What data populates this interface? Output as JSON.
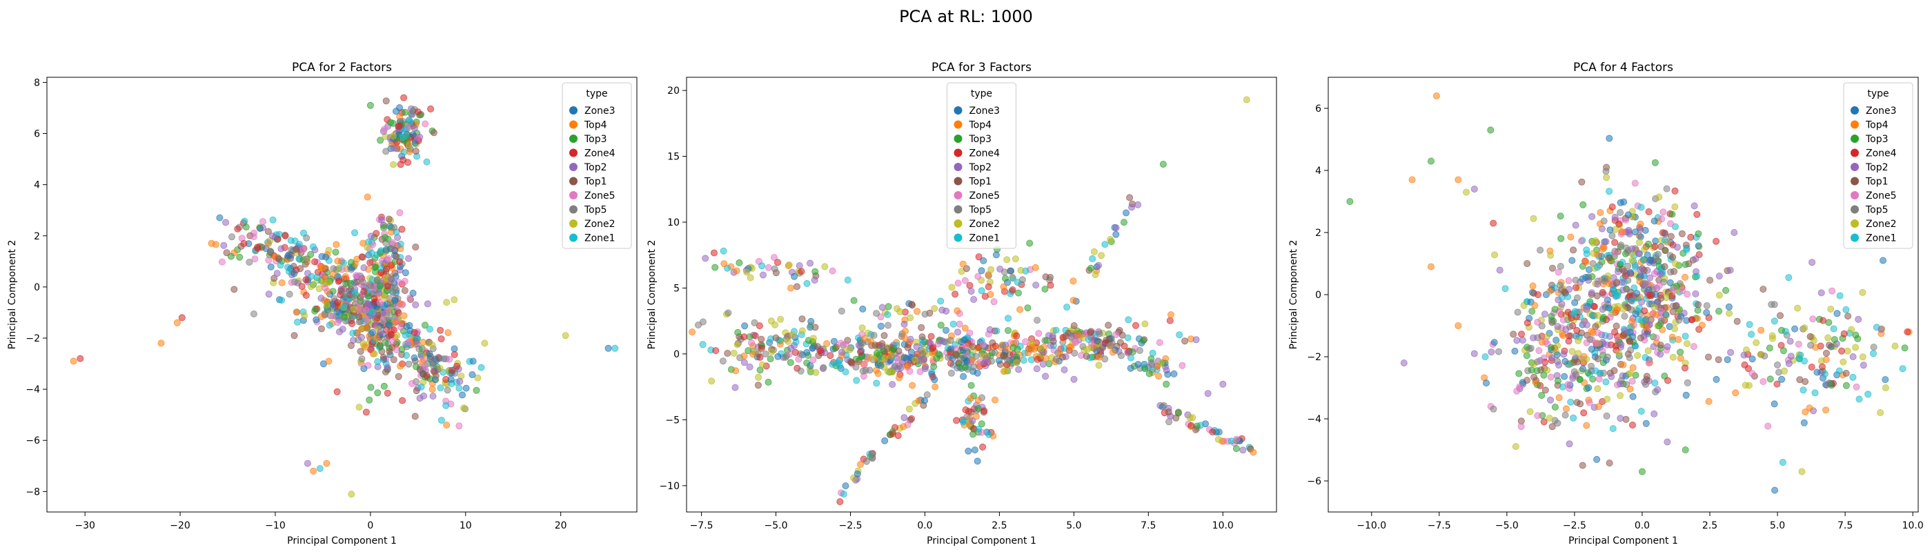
{
  "figure": {
    "title": "PCA at RL: 1000"
  },
  "legend_items": [
    {
      "label": "Zone3",
      "color": "#1f77b4"
    },
    {
      "label": "Top4",
      "color": "#ff7f0e"
    },
    {
      "label": "Top3",
      "color": "#2ca02c"
    },
    {
      "label": "Zone4",
      "color": "#d62728"
    },
    {
      "label": "Top2",
      "color": "#9467bd"
    },
    {
      "label": "Top1",
      "color": "#8c564b"
    },
    {
      "label": "Zone5",
      "color": "#e377c2"
    },
    {
      "label": "Top5",
      "color": "#7f7f7f"
    },
    {
      "label": "Zone2",
      "color": "#bcbd22"
    },
    {
      "label": "Zone1",
      "color": "#17becf"
    }
  ],
  "chart_data": [
    {
      "type": "scatter",
      "title": "PCA for 2 Factors",
      "xlabel": "Principal Component 1",
      "ylabel": "Principal Component 2",
      "xlim": [
        -34,
        28
      ],
      "ylim": [
        -8.8,
        8.2
      ],
      "xticks": [
        -30,
        -20,
        -10,
        0,
        10,
        20
      ],
      "yticks": [
        -8,
        -6,
        -4,
        -2,
        0,
        2,
        4,
        6,
        8
      ],
      "legend": {
        "title": "type",
        "position": "upper-right"
      },
      "clusters": [
        {
          "cx": 3.5,
          "cy": 6.0,
          "sx": 1.2,
          "sy": 0.5,
          "n": 110,
          "rot": 0
        },
        {
          "cx": 0.5,
          "cy": -1.0,
          "sx": 1.6,
          "sy": 1.3,
          "n": 260,
          "rot": 0
        },
        {
          "cx": -3.0,
          "cy": -0.8,
          "sx": 2.3,
          "sy": 0.3,
          "n": 90,
          "rot": 0
        },
        {
          "cx": -9.0,
          "cy": 1.2,
          "sx": 4.5,
          "sy": 0.6,
          "n": 150,
          "rot": -8
        },
        {
          "cx": -4.0,
          "cy": 0.0,
          "sx": 2.5,
          "sy": 0.9,
          "n": 90,
          "rot": 0
        },
        {
          "cx": 5.0,
          "cy": -2.5,
          "sx": 2.4,
          "sy": 0.8,
          "n": 120,
          "rot": -25
        },
        {
          "cx": 2.0,
          "cy": 1.3,
          "sx": 1.1,
          "sy": 0.9,
          "n": 70,
          "rot": 0
        },
        {
          "cx": 7.5,
          "cy": -3.3,
          "sx": 2.2,
          "sy": 0.6,
          "n": 50,
          "rot": 0
        }
      ],
      "points": [
        {
          "x": -30.5,
          "y": -2.8,
          "t": 3
        },
        {
          "x": -31.2,
          "y": -2.9,
          "t": 1
        },
        {
          "x": -22,
          "y": -2.2,
          "t": 1
        },
        {
          "x": -19.8,
          "y": -1.2,
          "t": 3
        },
        {
          "x": -20.3,
          "y": -1.4,
          "t": 1
        },
        {
          "x": 25,
          "y": -2.4,
          "t": 0
        },
        {
          "x": 25.7,
          "y": -2.4,
          "t": 9
        },
        {
          "x": 20.5,
          "y": -1.9,
          "t": 8
        },
        {
          "x": -6,
          "y": -7.2,
          "t": 1
        },
        {
          "x": -6.6,
          "y": -6.9,
          "t": 4
        },
        {
          "x": -4.6,
          "y": -6.9,
          "t": 1
        },
        {
          "x": -5.3,
          "y": -7.1,
          "t": 9
        },
        {
          "x": -2,
          "y": -8.1,
          "t": 8
        },
        {
          "x": 12,
          "y": -2.2,
          "t": 8
        },
        {
          "x": 8,
          "y": -0.6,
          "t": 8
        },
        {
          "x": 8.8,
          "y": -0.5,
          "t": 8
        },
        {
          "x": -8,
          "y": -1.9,
          "t": 5
        },
        {
          "x": -3.5,
          "y": -4.1,
          "t": 3
        },
        {
          "x": 3.5,
          "y": 7.4,
          "t": 3
        },
        {
          "x": 0,
          "y": 7.1,
          "t": 2
        }
      ]
    },
    {
      "type": "scatter",
      "title": "PCA for 3 Factors",
      "xlabel": "Principal Component 1",
      "ylabel": "Principal Component 2",
      "xlim": [
        -8.0,
        11.8
      ],
      "ylim": [
        -12.0,
        21.0
      ],
      "xticks": [
        -7.5,
        -5.0,
        -2.5,
        0.0,
        2.5,
        5.0,
        7.5,
        10.0
      ],
      "yticks": [
        -10,
        -5,
        0,
        5,
        10,
        15,
        20
      ],
      "legend": {
        "title": "type",
        "position": "upper-center"
      },
      "clusters": [
        {
          "cx": -1.5,
          "cy": 0.0,
          "sx": 2.0,
          "sy": 0.9,
          "n": 240,
          "rot": 0
        },
        {
          "cx": 2.0,
          "cy": 0.0,
          "sx": 1.8,
          "sy": 0.9,
          "n": 220,
          "rot": 0
        },
        {
          "cx": 5.5,
          "cy": 0.8,
          "sx": 1.3,
          "sy": 0.8,
          "n": 110,
          "rot": 15
        },
        {
          "cx": -5.5,
          "cy": 0.8,
          "sx": 1.1,
          "sy": 1.2,
          "n": 70,
          "rot": 0
        },
        {
          "cx": -5.2,
          "cy": 6.5,
          "sx": 1.2,
          "sy": 0.5,
          "n": 40,
          "rot": -15
        },
        {
          "cx": 2.7,
          "cy": 5.5,
          "sx": 0.8,
          "sy": 1.0,
          "n": 60,
          "rot": 0
        },
        {
          "cx": 1.6,
          "cy": -5.0,
          "sx": 0.3,
          "sy": 1.5,
          "n": 45,
          "rot": 0
        },
        {
          "cx": -0.5,
          "cy": 3.0,
          "sx": 0.9,
          "sy": 0.6,
          "n": 30,
          "rot": 0
        },
        {
          "cx": 8.0,
          "cy": -1.0,
          "sx": 0.6,
          "sy": 0.6,
          "n": 20,
          "rot": 0
        }
      ],
      "lines": [
        {
          "x0": -3.0,
          "y0": -11,
          "x1": 0.5,
          "y1": -2,
          "n": 40
        },
        {
          "x0": 8.0,
          "y0": -4.3,
          "x1": 11.0,
          "y1": -7.3,
          "n": 45
        },
        {
          "x0": 4.5,
          "y0": 3.0,
          "x1": 7.3,
          "y1": 12.5,
          "n": 24
        },
        {
          "x0": 5.0,
          "y0": 2.0,
          "x1": 8.0,
          "y1": -1.5,
          "n": 28
        }
      ],
      "points": [
        {
          "x": 10.8,
          "y": 19.3,
          "t": 8
        },
        {
          "x": 8.0,
          "y": 14.4,
          "t": 2
        },
        {
          "x": 10.0,
          "y": -2.3,
          "t": 4
        },
        {
          "x": 9.5,
          "y": -3.0,
          "t": 4
        },
        {
          "x": -3.7,
          "y": 5.6,
          "t": 4
        },
        {
          "x": -4.5,
          "y": 5.0,
          "t": 1
        }
      ]
    },
    {
      "type": "scatter",
      "title": "PCA for 4 Factors",
      "xlabel": "Principal Component 1",
      "ylabel": "Principal Component 2",
      "xlim": [
        -11.6,
        10.2
      ],
      "ylim": [
        -7.0,
        7.0
      ],
      "xticks": [
        -10.0,
        -7.5,
        -5.0,
        -2.5,
        0.0,
        2.5,
        5.0,
        7.5,
        10.0
      ],
      "yticks": [
        -6,
        -4,
        -2,
        0,
        2,
        4,
        6
      ],
      "legend": {
        "title": "type",
        "position": "upper-right"
      },
      "clusters": [
        {
          "cx": 0.0,
          "cy": 0.9,
          "sx": 1.2,
          "sy": 1.3,
          "n": 340,
          "rot": 0
        },
        {
          "cx": -2.0,
          "cy": -1.2,
          "sx": 1.4,
          "sy": 1.3,
          "n": 280,
          "rot": 0
        },
        {
          "cx": -0.5,
          "cy": -1.5,
          "sx": 1.7,
          "sy": 1.4,
          "n": 150,
          "rot": 0
        },
        {
          "cx": 6.0,
          "cy": -1.7,
          "sx": 1.5,
          "sy": 1.0,
          "n": 150,
          "rot": 0
        },
        {
          "cx": -3.5,
          "cy": -2.5,
          "sx": 1.0,
          "sy": 1.0,
          "n": 70,
          "rot": 0
        }
      ],
      "points": [
        {
          "x": -10.8,
          "y": 3.0,
          "t": 2
        },
        {
          "x": -7.6,
          "y": 6.4,
          "t": 1
        },
        {
          "x": -8.5,
          "y": 3.7,
          "t": 1
        },
        {
          "x": -7.8,
          "y": 4.3,
          "t": 2
        },
        {
          "x": -7.8,
          "y": 0.9,
          "t": 1
        },
        {
          "x": -6.8,
          "y": 3.7,
          "t": 1
        },
        {
          "x": -6.5,
          "y": 3.3,
          "t": 8
        },
        {
          "x": -6.2,
          "y": 3.4,
          "t": 4
        },
        {
          "x": -5.6,
          "y": 5.3,
          "t": 2
        },
        {
          "x": -5.5,
          "y": 2.3,
          "t": 3
        },
        {
          "x": -6.8,
          "y": -1.0,
          "t": 1
        },
        {
          "x": -6.2,
          "y": -1.9,
          "t": 4
        },
        {
          "x": -8.8,
          "y": -2.2,
          "t": 4
        },
        {
          "x": -2.2,
          "y": -5.5,
          "t": 5
        },
        {
          "x": 0.0,
          "y": -5.7,
          "t": 2
        },
        {
          "x": 4.9,
          "y": -6.3,
          "t": 0
        },
        {
          "x": 5.2,
          "y": -5.4,
          "t": 9
        },
        {
          "x": 5.9,
          "y": -5.7,
          "t": 8
        },
        {
          "x": 8.9,
          "y": 1.1,
          "t": 0
        },
        {
          "x": 9.8,
          "y": -1.2,
          "t": 3
        },
        {
          "x": 9.0,
          "y": -3.0,
          "t": 8
        },
        {
          "x": 8.8,
          "y": -3.8,
          "t": 8
        },
        {
          "x": 3.4,
          "y": 2.0,
          "t": 4
        },
        {
          "x": 1.6,
          "y": -5.0,
          "t": 2
        }
      ]
    }
  ]
}
